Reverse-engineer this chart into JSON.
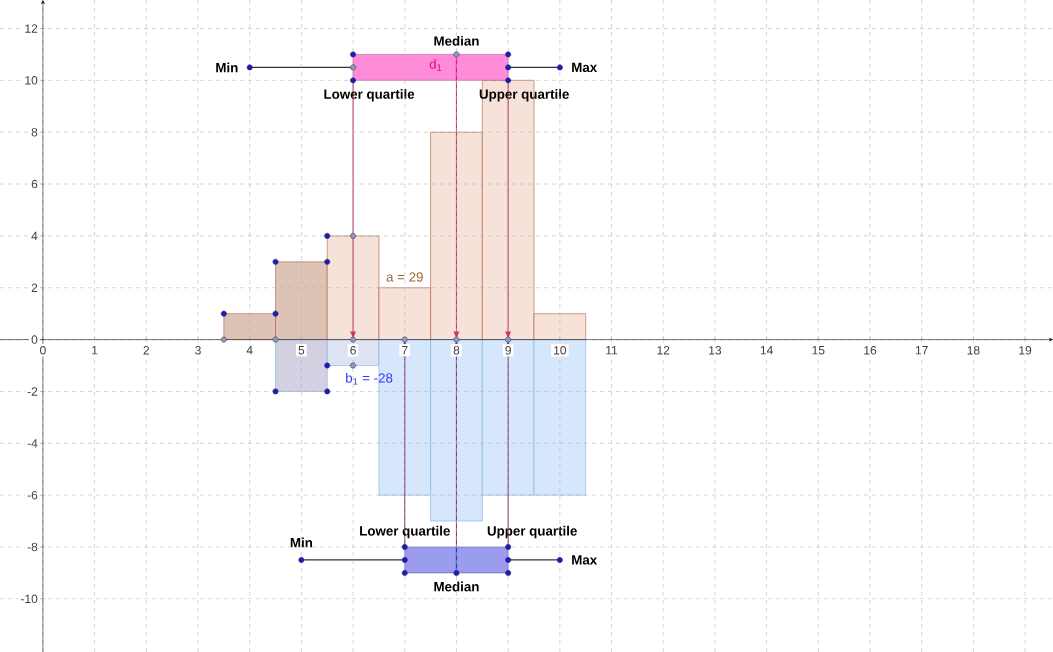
{
  "chart_data": {
    "type": "histogram",
    "xlim": [
      -0.83,
      19.54
    ],
    "ylim": [
      -12.05,
      13.1
    ],
    "xticks": [
      0,
      1,
      2,
      3,
      4,
      5,
      6,
      7,
      8,
      9,
      10,
      11,
      12,
      13,
      14,
      15,
      16,
      17,
      18,
      19
    ],
    "yticks": [
      -10,
      -8,
      -6,
      -4,
      -2,
      0,
      2,
      4,
      6,
      8,
      10,
      12
    ],
    "grid": true,
    "series": [
      {
        "color": "#a0522d",
        "colors": [
          "#dcc3b6",
          "#dcc3b6",
          "#f6e2d9",
          "#f6e2d9",
          "#f6e2d9",
          "#f6e2d9",
          "#f6e2d9"
        ],
        "bins": [
          3.5,
          4.5,
          5.5,
          6.5,
          7.5,
          8.5,
          9.5,
          10.5
        ],
        "values": [
          1,
          3,
          4,
          2,
          8,
          10,
          1
        ]
      },
      {
        "color": "#6fa8dc",
        "colors": [
          "#d3d0e2",
          "#dde3f2",
          "#d6e6fb",
          "#d6e6fb",
          "#d6e6fb",
          "#d6e6fb"
        ],
        "bins": [
          4.5,
          5.5,
          6.5,
          7.5,
          8.5,
          9.5,
          10.5
        ],
        "values": [
          -2,
          -1,
          -6,
          -7,
          -6,
          -6
        ]
      },
      {
        "type": "line",
        "color": "#333333",
        "x": [
          4,
          6,
          8,
          9,
          10
        ],
        "values": [
          10.5,
          10.5,
          null,
          10.5,
          10.5
        ]
      },
      {
        "type": "line",
        "color": "#ff66cc",
        "x": [
          6,
          8,
          9
        ],
        "values": [
          null,
          null,
          null
        ],
        "lower": [
          10,
          10,
          10
        ],
        "upper": [
          11,
          11,
          11
        ]
      },
      {
        "type": "line",
        "color": "#e0109a",
        "x": [
          8,
          8
        ],
        "values": [
          10,
          11
        ]
      },
      {
        "type": "line",
        "color": "#333333",
        "x": [
          5,
          7,
          8,
          9,
          10
        ],
        "values": [
          -8.5,
          -8.5,
          null,
          -8.5,
          -8.5
        ]
      },
      {
        "type": "line",
        "color": "#7a7aea",
        "x": [
          7,
          8,
          9
        ],
        "values": [
          null,
          null,
          null
        ],
        "lower": [
          -9,
          -9,
          -9
        ],
        "upper": [
          -8,
          -8,
          -8
        ]
      },
      {
        "type": "line",
        "color": "#1f3fbf",
        "x": [
          8,
          8
        ],
        "values": [
          -9,
          -8
        ]
      },
      {
        "type": "scatter",
        "marker": "circle",
        "color": "#1a1acc",
        "x": [
          3.5,
          4.5,
          4.5,
          5.5,
          5.5,
          4.5,
          5.5,
          5.5,
          4,
          6,
          6,
          9,
          9,
          9,
          10,
          5,
          7,
          7,
          7,
          8,
          9,
          9,
          9,
          10
        ],
        "values": [
          1,
          1,
          3,
          3,
          4,
          -2,
          -2,
          -1,
          10.5,
          10,
          11,
          10,
          10.5,
          11,
          10.5,
          -8.5,
          -8,
          -8.5,
          -9,
          -9,
          -8,
          -8.5,
          -9,
          -8.5
        ]
      },
      {
        "type": "scatter",
        "marker": "circle",
        "color": "#8d99c2",
        "x": [
          3.5,
          4.5,
          6,
          6,
          6,
          7,
          8,
          9,
          6,
          8
        ],
        "values": [
          0,
          0,
          4,
          -1,
          0,
          0,
          0,
          0,
          10.5,
          11
        ]
      }
    ],
    "annotations": [
      {
        "text": "Min",
        "x": 4,
        "y": 10.5
      },
      {
        "text": "Max",
        "x": 10,
        "y": 10.5
      },
      {
        "text": "Lower quartile",
        "x": 6,
        "y": 10
      },
      {
        "text": "Median",
        "x": 8,
        "y": 11
      },
      {
        "text": "Upper quartile",
        "x": 9,
        "y": 10
      },
      "d$_{1}$",
      {
        "text": "a = 29",
        "x": 7,
        "y": 2
      },
      {
        "text": "b$_{1}$ = -28",
        "x": 6,
        "y": -1
      },
      {
        "text": "Min",
        "x": 5,
        "y": -8.5
      },
      {
        "text": "Max",
        "x": 10,
        "y": -8.5
      },
      {
        "text": "Lower quartile",
        "x": 7,
        "y": -8
      },
      {
        "text": "Upper quartile",
        "x": 9,
        "y": -8
      },
      {
        "text": "Median",
        "x": 8,
        "y": -9
      }
    ]
  }
}
